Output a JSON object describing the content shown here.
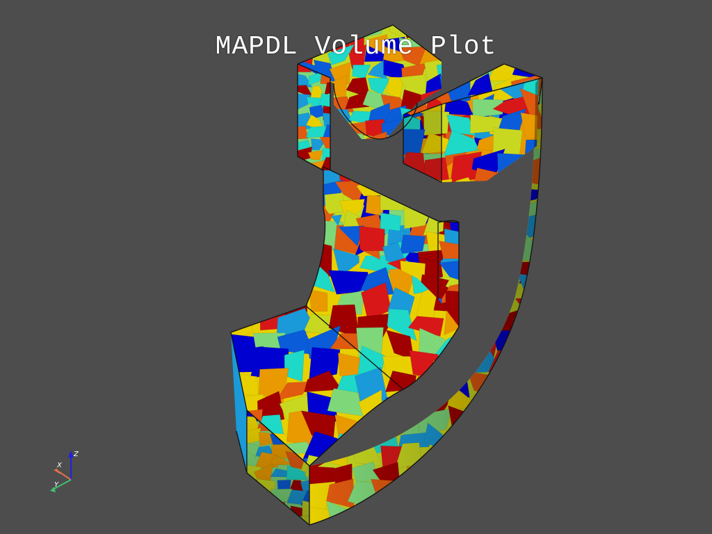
{
  "plot": {
    "title": "MAPDL Volume Plot",
    "background": "#4d4d4d",
    "title_color": "#ffffff",
    "colormap": [
      "#0000d0",
      "#0a5cd8",
      "#1a9ad8",
      "#1ed8c8",
      "#7ed87a",
      "#c8d820",
      "#e8d000",
      "#e89a00",
      "#e05a10",
      "#d81818",
      "#a00000"
    ]
  },
  "axes": {
    "x_label": "X",
    "y_label": "Y",
    "z_label": "Z",
    "x_color": "#e0704a",
    "y_color": "#40c070",
    "z_color": "#2020e0"
  }
}
